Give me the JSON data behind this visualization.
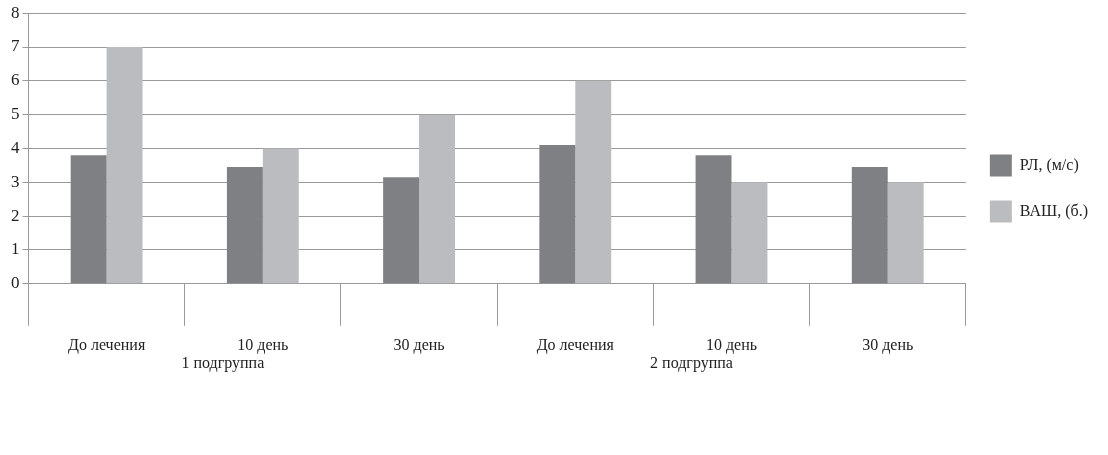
{
  "chart_data": {
    "type": "bar",
    "categories": [
      "До лечения",
      "10 день",
      "30 день",
      "До лечения",
      "10 день",
      "30 день"
    ],
    "series": [
      {
        "name": "РЛ, (м/с)",
        "color": "#7f8084",
        "values": [
          3.8,
          3.45,
          3.15,
          4.1,
          3.8,
          3.45
        ]
      },
      {
        "name": "ВАШ, (б.)",
        "color": "#bbbcc0",
        "values": [
          7,
          4,
          5,
          6,
          3,
          3
        ]
      }
    ],
    "ylim": [
      0,
      8
    ],
    "yticks": [
      0,
      1,
      2,
      3,
      4,
      5,
      6,
      7,
      8
    ],
    "grid": "y",
    "legend": "right",
    "annotations": [
      "1 подгруппа",
      "2 подгруппа"
    ]
  }
}
